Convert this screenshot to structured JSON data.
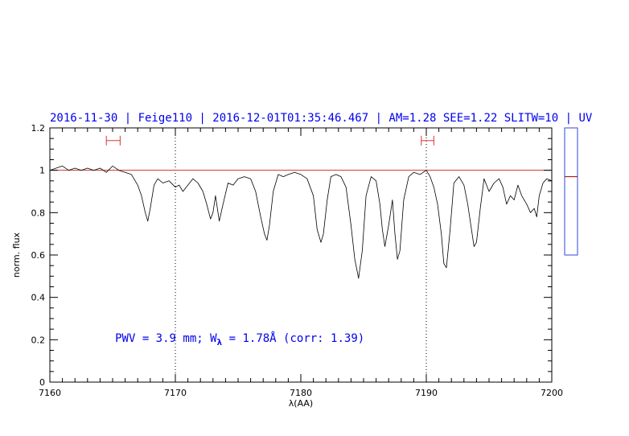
{
  "chart_data": {
    "type": "line",
    "title": "2016-11-30 | Feige110 | 2016-12-01T01:35:46.467 | AM=1.28 SEE=1.22 SLITW=10 | UV",
    "xlabel": "λ(AA)",
    "ylabel": "norm. flux",
    "xlim": [
      7160,
      7200
    ],
    "ylim": [
      0,
      1.2
    ],
    "xticks": [
      7160,
      7170,
      7180,
      7190,
      7200
    ],
    "xtick_labels": [
      "7160",
      "7170",
      "7180",
      "7190",
      "7200"
    ],
    "yticks": [
      0,
      0.2,
      0.4,
      0.6,
      0.8,
      1,
      1.2
    ],
    "ytick_labels": [
      "0",
      "0.2",
      "0.4",
      "0.6",
      "0.8",
      "1",
      "1.2"
    ],
    "grid": false,
    "reference_line": {
      "y": 1.0,
      "color": "#cc3333"
    },
    "dotted_vlines": [
      7170,
      7190
    ],
    "continuum_windows": [
      {
        "x0": 7164.5,
        "x1": 7165.6,
        "y": 1.14
      },
      {
        "x0": 7189.6,
        "x1": 7190.6,
        "y": 1.14
      }
    ],
    "annotation": {
      "prefix": "PWV = 3.9 mm; W",
      "sub": "λ",
      "suffix": " = 1.78Å (corr: 1.39)",
      "x": 7165.2,
      "y": 0.19
    },
    "series": [
      {
        "color": "#000000",
        "x": [
          7160.0,
          7160.5,
          7161.0,
          7161.5,
          7162.0,
          7162.5,
          7163.0,
          7163.5,
          7164.0,
          7164.5,
          7165.0,
          7165.5,
          7166.0,
          7166.5,
          7167.0,
          7167.3,
          7167.6,
          7167.8,
          7168.0,
          7168.3,
          7168.6,
          7169.0,
          7169.5,
          7170.0,
          7170.3,
          7170.6,
          7171.0,
          7171.4,
          7171.8,
          7172.2,
          7172.5,
          7172.8,
          7173.0,
          7173.2,
          7173.5,
          7173.8,
          7174.2,
          7174.6,
          7175.0,
          7175.5,
          7176.0,
          7176.4,
          7176.8,
          7177.1,
          7177.3,
          7177.5,
          7177.8,
          7178.2,
          7178.6,
          7179.0,
          7179.5,
          7180.0,
          7180.5,
          7181.0,
          7181.3,
          7181.6,
          7181.8,
          7182.1,
          7182.4,
          7182.8,
          7183.2,
          7183.6,
          7184.0,
          7184.3,
          7184.6,
          7184.9,
          7185.2,
          7185.6,
          7186.0,
          7186.3,
          7186.5,
          7186.7,
          7187.0,
          7187.3,
          7187.5,
          7187.7,
          7187.9,
          7188.2,
          7188.6,
          7189.0,
          7189.5,
          7190.0,
          7190.3,
          7190.6,
          7190.9,
          7191.2,
          7191.4,
          7191.6,
          7191.9,
          7192.2,
          7192.6,
          7193.0,
          7193.3,
          7193.6,
          7193.8,
          7194.0,
          7194.3,
          7194.6,
          7195.0,
          7195.4,
          7195.8,
          7196.1,
          7196.4,
          7196.7,
          7197.0,
          7197.3,
          7197.6,
          7198.0,
          7198.3,
          7198.6,
          7198.8,
          7199.0,
          7199.3,
          7199.6,
          7200.0
        ],
        "y": [
          1.0,
          1.01,
          1.02,
          1.0,
          1.01,
          1.0,
          1.01,
          1.0,
          1.01,
          0.99,
          1.02,
          1.0,
          0.99,
          0.98,
          0.93,
          0.88,
          0.8,
          0.76,
          0.82,
          0.93,
          0.96,
          0.94,
          0.95,
          0.92,
          0.93,
          0.9,
          0.93,
          0.96,
          0.94,
          0.9,
          0.84,
          0.77,
          0.8,
          0.88,
          0.76,
          0.84,
          0.94,
          0.93,
          0.96,
          0.97,
          0.96,
          0.9,
          0.78,
          0.7,
          0.67,
          0.74,
          0.9,
          0.98,
          0.97,
          0.98,
          0.99,
          0.98,
          0.96,
          0.88,
          0.72,
          0.66,
          0.7,
          0.86,
          0.97,
          0.98,
          0.97,
          0.92,
          0.74,
          0.58,
          0.49,
          0.62,
          0.88,
          0.97,
          0.95,
          0.84,
          0.72,
          0.64,
          0.74,
          0.86,
          0.7,
          0.58,
          0.62,
          0.86,
          0.97,
          0.99,
          0.98,
          1.0,
          0.97,
          0.92,
          0.84,
          0.7,
          0.56,
          0.54,
          0.72,
          0.94,
          0.97,
          0.93,
          0.84,
          0.72,
          0.64,
          0.66,
          0.82,
          0.96,
          0.9,
          0.94,
          0.96,
          0.92,
          0.84,
          0.88,
          0.86,
          0.93,
          0.88,
          0.84,
          0.8,
          0.82,
          0.78,
          0.88,
          0.94,
          0.96,
          0.95
        ]
      }
    ],
    "side_panel": {
      "ylim": [
        0.6,
        1.2
      ],
      "marker_y": 0.97,
      "box_color": "#3344dd",
      "marker_color": "#aa2222"
    }
  }
}
